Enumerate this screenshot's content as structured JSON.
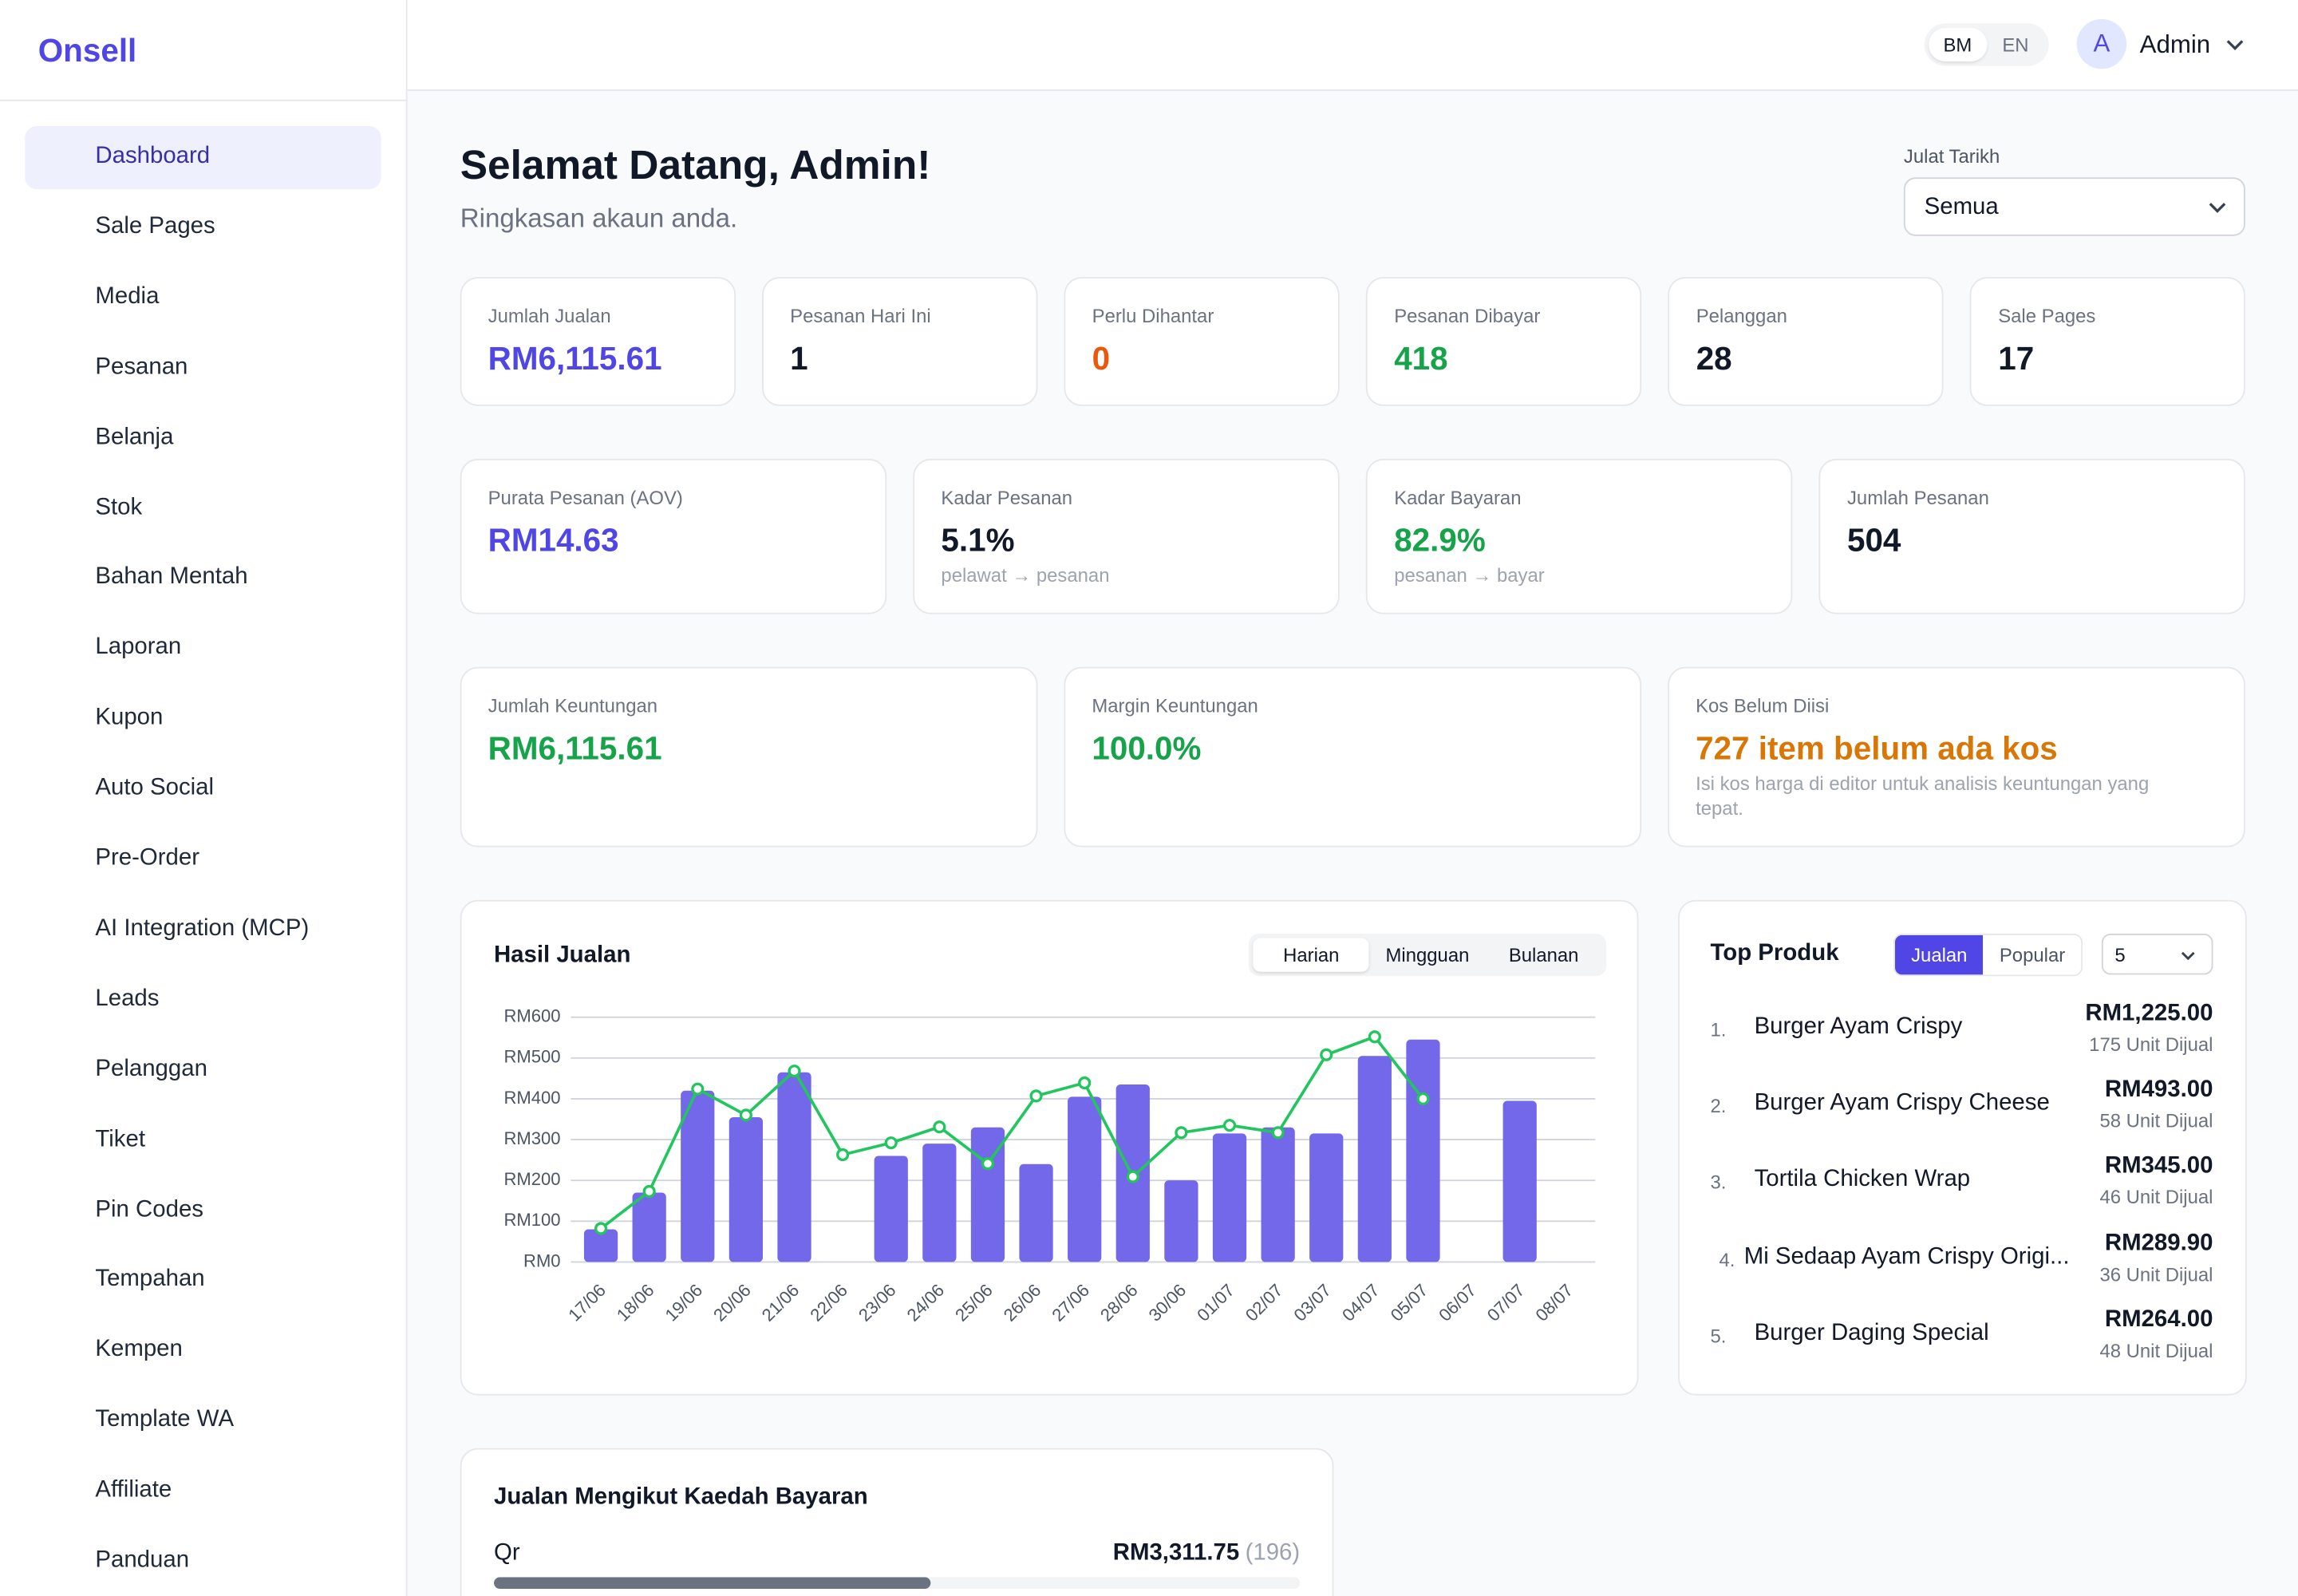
{
  "sidebar": {
    "logo": "Onsell",
    "menu": [
      {
        "label": "Dashboard",
        "active": true
      },
      {
        "label": "Sale Pages"
      },
      {
        "label": "Media"
      },
      {
        "label": "Pesanan"
      },
      {
        "label": "Belanja"
      },
      {
        "label": "Stok"
      },
      {
        "label": "Bahan Mentah"
      },
      {
        "label": "Laporan",
        "submenu": true
      },
      {
        "label": "Kupon"
      },
      {
        "label": "Auto Social"
      },
      {
        "label": "Pre-Order"
      },
      {
        "label": "AI Integration (MCP)"
      },
      {
        "label": "Leads",
        "submenu": true
      },
      {
        "label": "Pelanggan"
      },
      {
        "label": "Tiket"
      },
      {
        "label": "Pin Codes"
      },
      {
        "label": "Tempahan"
      },
      {
        "label": "Kempen"
      },
      {
        "label": "Template WA"
      },
      {
        "label": "Affiliate"
      },
      {
        "label": "Panduan"
      }
    ]
  },
  "topbar": {
    "languages": [
      "BM",
      "EN"
    ],
    "active_language": 0,
    "avatar": "A",
    "user": "Admin"
  },
  "header": {
    "title": "Selamat Datang, Admin!",
    "subtitle": "Ringkasan akaun anda."
  },
  "date_filter": {
    "label": "Julat Tarikh",
    "value": "Semua"
  },
  "stats": [
    [
      {
        "label": "Jumlah Jualan",
        "value": "RM6,115.61",
        "color": "#4f46e5"
      },
      {
        "label": "Pesanan Hari Ini",
        "value": "1",
        "color": "#111827"
      },
      {
        "label": "Perlu Dihantar",
        "value": "0",
        "color": "#ea580c"
      },
      {
        "label": "Pesanan Dibayar",
        "value": "418",
        "color": "#16a34a"
      },
      {
        "label": "Pelanggan",
        "value": "28",
        "color": "#111827"
      },
      {
        "label": "Sale Pages",
        "value": "17",
        "color": "#111827"
      }
    ],
    [
      {
        "label": "Purata Pesanan (AOV)",
        "value": "RM14.63",
        "color": "#4f46e5"
      },
      {
        "label": "Kadar Pesanan",
        "value": "5.1%",
        "color": "#111827",
        "note": "pelawat → pesanan"
      },
      {
        "label": "Kadar Bayaran",
        "value": "82.9%",
        "color": "#16a34a",
        "note": "pesanan → bayar"
      },
      {
        "label": "Jumlah Pesanan",
        "value": "504",
        "color": "#111827"
      }
    ],
    [
      {
        "label": "Jumlah Keuntungan",
        "value": "RM6,115.61",
        "color": "#16a34a"
      },
      {
        "label": "Margin Keuntungan",
        "value": "100.0%",
        "color": "#16a34a"
      },
      {
        "label": "Kos Belum Diisi",
        "value": "727 item belum ada kos",
        "color": "#d97706",
        "note": "Isi kos harga di editor untuk analisis keuntungan yang tepat."
      }
    ]
  ],
  "sales_tabs": {
    "tabs": [
      "Harian",
      "Mingguan",
      "Bulanan"
    ],
    "active": 0
  },
  "chart_data": {
    "type": "bar",
    "title": "Hasil Jualan",
    "categories": [
      "17/06",
      "18/06",
      "19/06",
      "20/06",
      "21/06",
      "22/06",
      "23/06",
      "24/06",
      "25/06",
      "26/06",
      "27/06",
      "28/06",
      "30/06",
      "01/07",
      "02/07",
      "03/07",
      "04/07",
      "05/07",
      "06/07",
      "07/07",
      "08/07"
    ],
    "series": [
      {
        "type": "bar",
        "color": "#7367ea",
        "values": [
          80,
          170,
          420,
          355,
          465,
          0,
          260,
          290,
          330,
          240,
          405,
          435,
          200,
          315,
          330,
          315,
          505,
          545,
          0,
          395,
          0
        ]
      },
      {
        "type": "line",
        "color": "#22c55e",
        "values": [
          82,
          173,
          424,
          360,
          468,
          263,
          292,
          331,
          241,
          407,
          439,
          209,
          317,
          335,
          317,
          508,
          552,
          400,
          null,
          null,
          null
        ]
      }
    ],
    "ylim": [
      0,
      600
    ],
    "yticks": [
      {
        "value": 0,
        "label": "RM0"
      },
      {
        "value": 100,
        "label": "RM100"
      },
      {
        "value": 200,
        "label": "RM200"
      },
      {
        "value": 300,
        "label": "RM300"
      },
      {
        "value": 400,
        "label": "RM400"
      },
      {
        "value": 500,
        "label": "RM500"
      },
      {
        "value": 600,
        "label": "RM600"
      }
    ],
    "grid": true
  },
  "top_products": {
    "title": "Top Produk",
    "tabs": [
      "Jualan",
      "Popular"
    ],
    "active": 0,
    "limit": "5",
    "items": [
      {
        "rank": "1.",
        "name": "Burger Ayam Crispy",
        "amount": "RM1,225.00",
        "units": "175 Unit Dijual"
      },
      {
        "rank": "2.",
        "name": "Burger Ayam Crispy Cheese",
        "amount": "RM493.00",
        "units": "58 Unit Dijual"
      },
      {
        "rank": "3.",
        "name": "Tortila Chicken Wrap",
        "amount": "RM345.00",
        "units": "46 Unit Dijual"
      },
      {
        "rank": "4.",
        "name": "Mi Sedaap Ayam Crispy Origi...",
        "amount": "RM289.90",
        "units": "36 Unit Dijual"
      },
      {
        "rank": "5.",
        "name": "Burger Daging Special",
        "amount": "RM264.00",
        "units": "48 Unit Dijual"
      }
    ]
  },
  "payment_methods": {
    "title": "Jualan Mengikut Kaedah Bayaran",
    "total": 6115.61,
    "methods": [
      {
        "name": "Qr",
        "value": 3311.75,
        "value_label": "RM3,311.75",
        "count": "(196)"
      }
    ]
  }
}
